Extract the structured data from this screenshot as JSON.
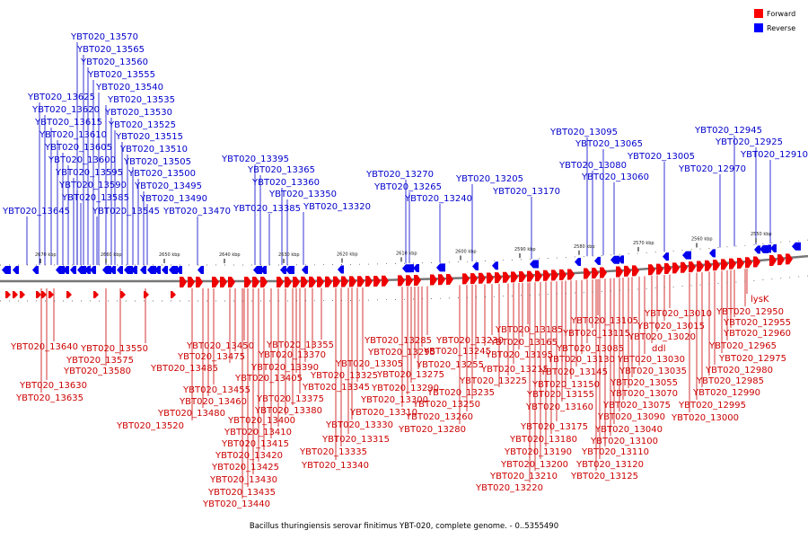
{
  "caption": "Bacillus thuringiensis serovar finitimus YBT-020, complete genome. - 0..5355490",
  "legend": [
    {
      "label": "Forward",
      "color": "#ff0000"
    },
    {
      "label": "Reverse",
      "color": "#0000ff"
    }
  ],
  "colors": {
    "forward": "#ee0000",
    "reverse": "#0000ee",
    "backbone": "#777777"
  },
  "ticks": [
    "2670 kbp",
    "2660 kbp",
    "2650 kbp",
    "2640 kbp",
    "2630 kbp",
    "2620 kbp",
    "2610 kbp",
    "2600 kbp",
    "2590 kbp",
    "2580 kbp",
    "2570 kbp",
    "2560 kbp",
    "2550 kbp"
  ],
  "reverse_labels": [
    "YBT020_13570",
    "YBT020_13565",
    "YBT020_13560",
    "YBT020_13555",
    "YBT020_13540",
    "YBT020_13625",
    "YBT020_13535",
    "YBT020_13620",
    "YBT020_13530",
    "YBT020_13615",
    "YBT020_13525",
    "YBT020_13610",
    "YBT020_13515",
    "YBT020_13605",
    "YBT020_13510",
    "YBT020_13600",
    "YBT020_13505",
    "YBT020_13595",
    "YBT020_13500",
    "YBT020_13590",
    "YBT020_13495",
    "YBT020_13585",
    "YBT020_13490",
    "YBT020_13645",
    "YBT020_13545",
    "YBT020_13470",
    "YBT020_13395",
    "YBT020_13365",
    "YBT020_13360",
    "YBT020_13350",
    "YBT020_13385",
    "YBT020_13320",
    "YBT020_13270",
    "YBT020_13265",
    "YBT020_13240",
    "YBT020_13205",
    "YBT020_13170",
    "YBT020_13095",
    "YBT020_13065",
    "YBT020_13080",
    "YBT020_13060",
    "YBT020_13005",
    "YBT020_12945",
    "YBT020_12925",
    "YBT020_12970",
    "YBT020_12910"
  ],
  "forward_labels": [
    "lysK",
    "YBT020_12950",
    "YBT020_12955",
    "YBT020_12960",
    "YBT020_12965",
    "YBT020_12975",
    "YBT020_12980",
    "YBT020_12985",
    "YBT020_12990",
    "YBT020_12995",
    "YBT020_13000",
    "YBT020_13010",
    "YBT020_13015",
    "YBT020_13020",
    "ddl",
    "YBT020_13030",
    "YBT020_13035",
    "YBT020_13055",
    "YBT020_13070",
    "YBT020_13075",
    "YBT020_13090",
    "YBT020_13040",
    "YBT020_13100",
    "YBT020_13110",
    "YBT020_13120",
    "YBT020_13125",
    "YBT020_13105",
    "YBT020_13115",
    "YBT020_13085",
    "YBT020_13130",
    "YBT020_13145",
    "YBT020_13150",
    "YBT020_13155",
    "YBT020_13160",
    "YBT020_13175",
    "YBT020_13180",
    "YBT020_13190",
    "YBT020_13200",
    "YBT020_13210",
    "YBT020_13220",
    "YBT020_13185",
    "YBT020_13165",
    "YBT020_13195",
    "YBT020_13215",
    "YBT020_13225",
    "YBT020_13235",
    "YBT020_13230",
    "YBT020_13245",
    "YBT020_13255",
    "YBT020_13250",
    "YBT020_13260",
    "YBT020_13280",
    "YBT020_13285",
    "YBT020_13295",
    "YBT020_13305",
    "YBT020_13275",
    "YBT020_13290",
    "YBT020_13300",
    "YBT020_13310",
    "YBT020_13325",
    "YBT020_13345",
    "YBT020_13330",
    "YBT020_13315",
    "YBT020_13335",
    "YBT020_13340",
    "YBT020_13355",
    "YBT020_13370",
    "YBT020_13390",
    "YBT020_13405",
    "YBT020_13375",
    "YBT020_13380",
    "YBT020_13400",
    "YBT020_13410",
    "YBT020_13415",
    "YBT020_13420",
    "YBT020_13425",
    "YBT020_13430",
    "YBT020_13435",
    "YBT020_13440",
    "YBT020_13450",
    "YBT020_13475",
    "YBT020_13485",
    "YBT020_13455",
    "YBT020_13460",
    "YBT020_13480",
    "YBT020_13520",
    "YBT020_13550",
    "YBT020_13575",
    "YBT020_13580",
    "YBT020_13640",
    "YBT020_13630",
    "YBT020_13635"
  ]
}
